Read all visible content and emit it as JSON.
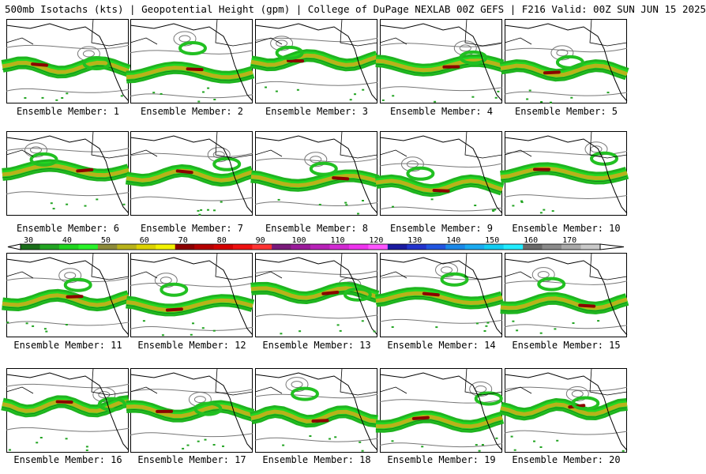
{
  "header": {
    "title": "500mb Isotachs (kts) | Geopotential Height (gpm) | College of DuPage NEXLAB",
    "run": "00Z GEFS | F216 Valid: 00Z SUN JUN 15 2025"
  },
  "colorbar": {
    "ticks": [
      "30",
      "40",
      "50",
      "60",
      "70",
      "80",
      "90",
      "100",
      "110",
      "120",
      "130",
      "140",
      "150",
      "160",
      "170"
    ],
    "colors": [
      "#1a6e1a",
      "#22a422",
      "#1fd41f",
      "#29f229",
      "#8c8a3a",
      "#b8b21a",
      "#dcd200",
      "#f2f200",
      "#8b0000",
      "#b40000",
      "#d40000",
      "#ee1111",
      "#ff3333",
      "#7a1a7a",
      "#9a1a9a",
      "#b822b8",
      "#d22ad2",
      "#ee33ee",
      "#ff55ff",
      "#1a1aa0",
      "#2233cc",
      "#2255e0",
      "#1a88e8",
      "#1aaaf0",
      "#11ccf2",
      "#22ecff",
      "#6a6a6a",
      "#8a8a8a",
      "#a8a8a8",
      "#c8c8c8"
    ]
  },
  "members": [
    {
      "label": "Ensemble Member: 1"
    },
    {
      "label": "Ensemble Member: 2"
    },
    {
      "label": "Ensemble Member: 3"
    },
    {
      "label": "Ensemble Member: 4"
    },
    {
      "label": "Ensemble Member: 5"
    },
    {
      "label": "Ensemble Member: 6"
    },
    {
      "label": "Ensemble Member: 7"
    },
    {
      "label": "Ensemble Member: 8"
    },
    {
      "label": "Ensemble Member: 9"
    },
    {
      "label": "Ensemble Member: 10"
    },
    {
      "label": "Ensemble Member: 11"
    },
    {
      "label": "Ensemble Member: 12"
    },
    {
      "label": "Ensemble Member: 13"
    },
    {
      "label": "Ensemble Member: 14"
    },
    {
      "label": "Ensemble Member: 15"
    },
    {
      "label": "Ensemble Member: 16"
    },
    {
      "label": "Ensemble Member: 17"
    },
    {
      "label": "Ensemble Member: 18"
    },
    {
      "label": "Ensemble Member: 19"
    },
    {
      "label": "Ensemble Member: 20"
    }
  ]
}
